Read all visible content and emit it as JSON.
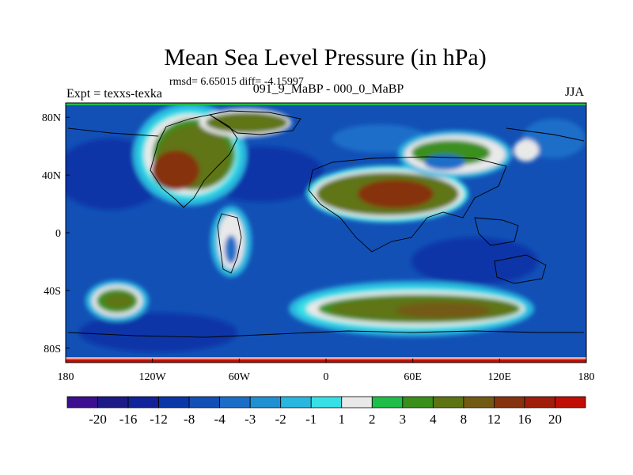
{
  "chart_data": {
    "type": "heatmap",
    "title": "Mean Sea Level Pressure (in hPa)",
    "stats": "rmsd= 6.65015 diff= -4.15997",
    "subtitle_left": "Expt = texxs-texka",
    "subtitle_center": "091_9_MaBP - 000_0_MaBP",
    "subtitle_right": "JJA",
    "x_ticks": [
      "180",
      "120W",
      "60W",
      "0",
      "60E",
      "120E",
      "180"
    ],
    "y_ticks": [
      "80N",
      "40N",
      "0",
      "40S",
      "80S"
    ],
    "xlim": [
      -180,
      180
    ],
    "ylim": [
      -90,
      90
    ],
    "grid": false,
    "colorbar": {
      "levels": [
        "-20",
        "-16",
        "-12",
        "-8",
        "-4",
        "-3",
        "-2",
        "-1",
        "1",
        "2",
        "3",
        "4",
        "8",
        "12",
        "16",
        "20"
      ],
      "colors": [
        "#3b0f8f",
        "#1c1a86",
        "#10239a",
        "#0b36a8",
        "#1250b6",
        "#1b6ec8",
        "#1f91d3",
        "#29b7df",
        "#36e0e6",
        "#e9e9e9",
        "#1fbe4a",
        "#3a8f1a",
        "#5e7412",
        "#735a12",
        "#85330f",
        "#a01d0b",
        "#c00e06"
      ]
    },
    "regions": [
      {
        "name": "North America high",
        "color": "#735a12"
      },
      {
        "name": "Eurasia high",
        "color": "#735a12"
      },
      {
        "name": "Southern Ocean high",
        "color": "#735a12"
      },
      {
        "name": "South Pacific high",
        "color": "#735a12"
      },
      {
        "name": "Ocean background",
        "color": "#1250b6"
      }
    ]
  }
}
